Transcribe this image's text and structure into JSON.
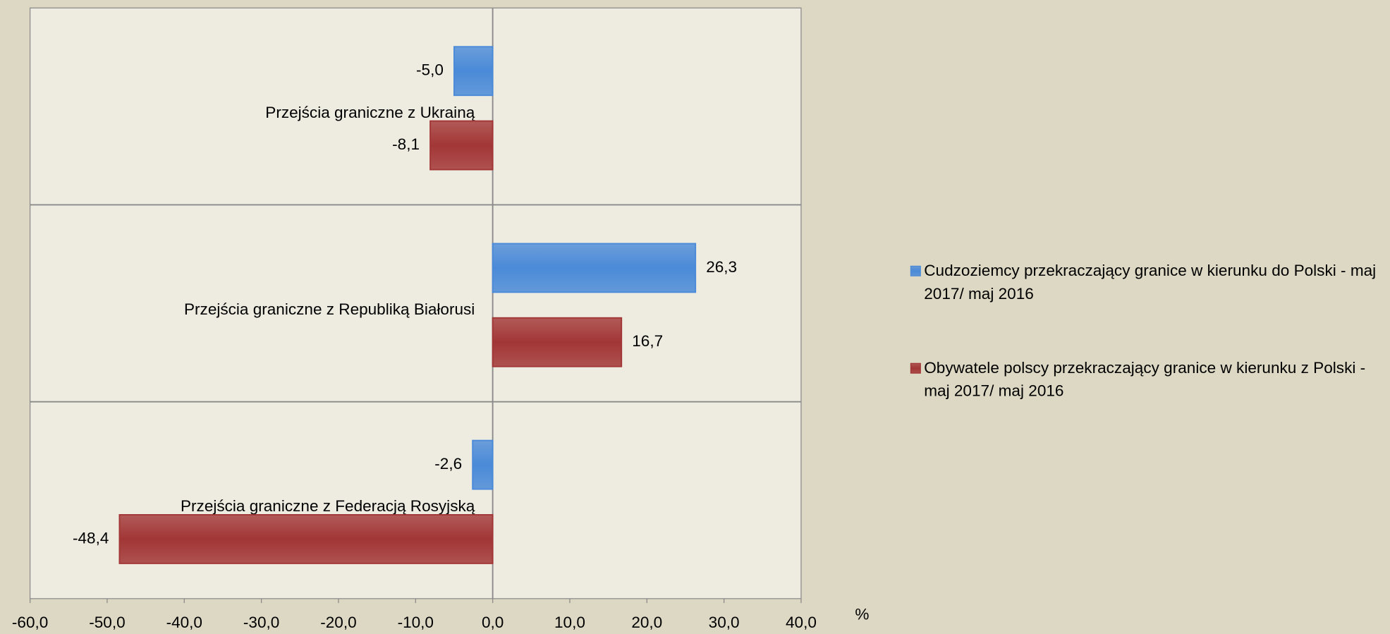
{
  "chart_data": {
    "type": "barh",
    "categories": [
      "Przejścia graniczne z Ukrainą",
      "Przejścia graniczne z Republiką Białorusi",
      "Przejścia graniczne z Federacją Rosyjską"
    ],
    "series": [
      {
        "name": "Cudzoziemcy przekraczający granice w kierunku do Polski - maj 2017/ maj 2016",
        "color": "#4a8ad8",
        "values": [
          -5.0,
          26.3,
          -2.6
        ],
        "value_labels": [
          "-5,0",
          "26,3",
          "-2,6"
        ]
      },
      {
        "name": "Obywatele polscy przekraczający granice w kierunku z Polski - maj 2017/ maj 2016",
        "color": "#a23636",
        "values": [
          -8.1,
          16.7,
          -48.4
        ],
        "value_labels": [
          "-8,1",
          "16,7",
          "-48,4"
        ]
      }
    ],
    "xlim": [
      -60,
      40
    ],
    "xticks": [
      {
        "value": -60,
        "label": "-60,0"
      },
      {
        "value": -50,
        "label": "-50,0"
      },
      {
        "value": -40,
        "label": "-40,0"
      },
      {
        "value": -30,
        "label": "-30,0"
      },
      {
        "value": -20,
        "label": "-20,0"
      },
      {
        "value": -10,
        "label": "-10,0"
      },
      {
        "value": 0,
        "label": "0,0"
      },
      {
        "value": 10,
        "label": "10,0"
      },
      {
        "value": 20,
        "label": "20,0"
      },
      {
        "value": 30,
        "label": "30,0"
      },
      {
        "value": 40,
        "label": "40,0"
      }
    ],
    "xlabel": "%",
    "legend": "right"
  }
}
